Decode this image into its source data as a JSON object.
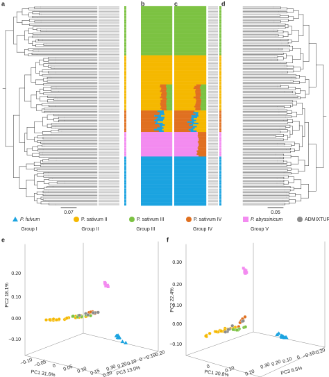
{
  "panels": {
    "a": "a",
    "b": "b",
    "c": "c",
    "d": "d",
    "e": "e",
    "f": "f"
  },
  "scale_bars": [
    "0.07",
    "0.05"
  ],
  "legend": [
    {
      "name": "P. fulvum",
      "group": "Group I"
    },
    {
      "name": "P. sativum II",
      "group": "Group II"
    },
    {
      "name": "P. sativum III",
      "group": "Group III"
    },
    {
      "name": "P. sativum IV",
      "group": "Group IV"
    },
    {
      "name": "P. abyssinicum",
      "group": "Group V"
    },
    {
      "name": "ADMIXTURE"
    }
  ],
  "pca_e": {
    "y_label": "PC2 18.1%",
    "x_label": "PC1 31.6%",
    "z_label": "PC3 13.0%",
    "y_ticks": [
      "0.20",
      "0.10",
      "0.00",
      "−0.10"
    ],
    "x_ticks": [
      "−0.10",
      "−0.05",
      "0",
      "0.05",
      "0.10",
      "0.15",
      "0.20"
    ],
    "z_ticks": [
      "0.30",
      "0.20",
      "0.10",
      "0",
      "−0.10",
      "−0.20"
    ]
  },
  "pca_f": {
    "y_label": "PC2 22.4%",
    "x_label": "PC1 30.8%",
    "z_label": "PC3 8.5%",
    "y_ticks": [
      "0.30",
      "0.20",
      "0.10",
      "0.00",
      "−0.10"
    ],
    "x_ticks": [
      "0",
      "0.10",
      "0.20"
    ],
    "z_ticks": [
      "0.30",
      "0.20",
      "0.10",
      "0",
      "−0.10",
      "−0.20"
    ]
  }
}
